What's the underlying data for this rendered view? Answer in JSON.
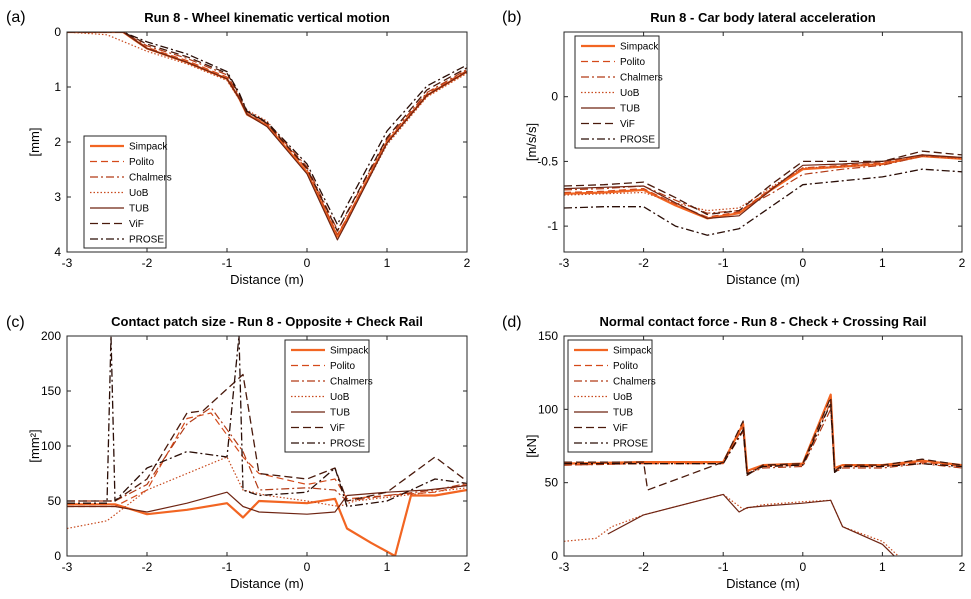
{
  "styles": {
    "Simpack": {
      "color": "#f26522",
      "dash": "",
      "width": 2.2
    },
    "Polito": {
      "color": "#d44a1a",
      "dash": "7,4",
      "width": 1.2
    },
    "Chalmers": {
      "color": "#b23b16",
      "dash": "8,3,2,3",
      "width": 1.2
    },
    "UoB": {
      "color": "#c84a1e",
      "dash": "1.5,2",
      "width": 1.2
    },
    "TUB": {
      "color": "#6e2412",
      "dash": "",
      "width": 1.2
    },
    "ViF": {
      "color": "#4a1a0c",
      "dash": "8,4",
      "width": 1.3
    },
    "PROSE": {
      "color": "#2a0d06",
      "dash": "8,3,2,3",
      "width": 1.3
    }
  },
  "chart_data": [
    {
      "panel": "(a)",
      "type": "line",
      "title": "Run 8 - Wheel kinematic vertical motion",
      "xlabel": "Distance (m)",
      "ylabel": "[mm]",
      "xlim": [
        -3,
        2
      ],
      "ylim": [
        0,
        4
      ],
      "yreversed": true,
      "xticks": [
        "-3",
        "-2",
        "-1",
        "0",
        "1",
        "2"
      ],
      "yticks": [
        "0",
        "1",
        "2",
        "3",
        "4"
      ],
      "legend": [
        "Simpack",
        "Polito",
        "Chalmers",
        "UoB",
        "TUB",
        "ViF",
        "PROSE"
      ],
      "legend_position": "bottom-left",
      "series": [
        {
          "name": "Simpack",
          "x": [
            -3,
            -2.3,
            -2.0,
            -1.5,
            -1.0,
            -0.85,
            -0.75,
            -0.5,
            0,
            0.38,
            0.5,
            1.0,
            1.5,
            2.0
          ],
          "y": [
            0,
            0,
            0.3,
            0.55,
            0.85,
            1.2,
            1.5,
            1.7,
            2.55,
            3.72,
            3.4,
            2.0,
            1.15,
            0.72
          ]
        },
        {
          "name": "Polito",
          "x": [
            -3,
            -2.3,
            -2.0,
            -1.5,
            -1.0,
            -0.85,
            -0.75,
            -0.5,
            0,
            0.38,
            0.5,
            1.0,
            1.5,
            2.0
          ],
          "y": [
            0,
            0,
            0.28,
            0.52,
            0.82,
            1.18,
            1.48,
            1.68,
            2.5,
            3.68,
            3.38,
            2.0,
            1.12,
            0.7
          ]
        },
        {
          "name": "Chalmers",
          "x": [
            -3,
            -2.3,
            -2.0,
            -1.5,
            -1.0,
            -0.85,
            -0.75,
            -0.5,
            0,
            0.38,
            0.5,
            1.0,
            1.5,
            2.0
          ],
          "y": [
            0,
            0,
            0.25,
            0.48,
            0.78,
            1.15,
            1.45,
            1.65,
            2.45,
            3.6,
            3.3,
            1.95,
            1.1,
            0.68
          ]
        },
        {
          "name": "UoB",
          "x": [
            -3,
            -2.5,
            -2.0,
            -1.5,
            -1.0,
            -0.85,
            -0.75,
            -0.5,
            0,
            0.38,
            0.5,
            1.0,
            1.5,
            2.0
          ],
          "y": [
            0,
            0.05,
            0.35,
            0.58,
            0.88,
            1.22,
            1.42,
            1.62,
            2.5,
            3.7,
            3.42,
            2.05,
            1.18,
            0.75
          ]
        },
        {
          "name": "TUB",
          "x": [
            -3,
            -2.3,
            -2.0,
            -1.5,
            -1.0,
            -0.85,
            -0.75,
            -0.5,
            0,
            0.38,
            0.5,
            1.0,
            1.5,
            2.0
          ],
          "y": [
            0,
            0,
            0.3,
            0.55,
            0.85,
            1.2,
            1.5,
            1.72,
            2.58,
            3.78,
            3.45,
            2.02,
            1.15,
            0.72
          ]
        },
        {
          "name": "ViF",
          "x": [
            -3,
            -2.3,
            -2.0,
            -1.5,
            -1.0,
            -0.85,
            -0.75,
            -0.5,
            0,
            0.38,
            0.5,
            1.0,
            1.5,
            2.0
          ],
          "y": [
            0,
            0,
            0.22,
            0.45,
            0.75,
            1.12,
            1.45,
            1.66,
            2.48,
            3.62,
            3.28,
            1.92,
            1.05,
            0.65
          ]
        },
        {
          "name": "PROSE",
          "x": [
            -3,
            -2.3,
            -2.0,
            -1.5,
            -1.0,
            -0.85,
            -0.75,
            -0.5,
            0,
            0.38,
            0.5,
            1.0,
            1.5,
            2.0
          ],
          "y": [
            0,
            0,
            0.18,
            0.4,
            0.72,
            1.1,
            1.44,
            1.64,
            2.4,
            3.5,
            3.15,
            1.8,
            0.98,
            0.6
          ]
        }
      ]
    },
    {
      "panel": "(b)",
      "type": "line",
      "title": "Run 8 - Car body lateral acceleration",
      "xlabel": "Distance (m)",
      "ylabel": "[m/s/s]",
      "xlim": [
        -3,
        2
      ],
      "ylim": [
        -1.2,
        0.5
      ],
      "yreversed": false,
      "xticks": [
        "-3",
        "-2",
        "-1",
        "0",
        "1",
        "2"
      ],
      "yticks": [
        "-1",
        "-0.5",
        "0"
      ],
      "ytickvals": [
        -1,
        -0.5,
        0
      ],
      "legend": [
        "Simpack",
        "Polito",
        "Chalmers",
        "UoB",
        "TUB",
        "ViF",
        "PROSE"
      ],
      "legend_position": "top-left",
      "series": [
        {
          "name": "Simpack",
          "x": [
            -3,
            -2.5,
            -2.0,
            -1.6,
            -1.2,
            -0.8,
            -0.4,
            0,
            0.5,
            1.0,
            1.5,
            2.0
          ],
          "y": [
            -0.75,
            -0.74,
            -0.72,
            -0.84,
            -0.94,
            -0.9,
            -0.72,
            -0.56,
            -0.54,
            -0.52,
            -0.46,
            -0.48
          ]
        },
        {
          "name": "Polito",
          "x": [
            -3,
            -2.5,
            -2.0,
            -1.6,
            -1.2,
            -0.8,
            -0.4,
            0,
            0.5,
            1.0,
            1.5,
            2.0
          ],
          "y": [
            -0.74,
            -0.73,
            -0.71,
            -0.83,
            -0.93,
            -0.89,
            -0.71,
            -0.55,
            -0.53,
            -0.51,
            -0.45,
            -0.47
          ]
        },
        {
          "name": "Chalmers",
          "x": [
            -3,
            -2.5,
            -2.0,
            -1.6,
            -1.2,
            -0.8,
            -0.4,
            0,
            0.5,
            1.0,
            1.5,
            2.0
          ],
          "y": [
            -0.72,
            -0.71,
            -0.69,
            -0.8,
            -0.9,
            -0.88,
            -0.75,
            -0.6,
            -0.56,
            -0.53,
            -0.46,
            -0.47
          ]
        },
        {
          "name": "UoB",
          "x": [
            -3,
            -2.5,
            -2.0,
            -1.6,
            -1.2,
            -0.8,
            -0.4,
            0,
            0.5,
            1.0,
            1.5,
            2.0
          ],
          "y": [
            -0.76,
            -0.75,
            -0.74,
            -0.82,
            -0.88,
            -0.86,
            -0.7,
            -0.55,
            -0.54,
            -0.52,
            -0.46,
            -0.48
          ]
        },
        {
          "name": "TUB",
          "x": [
            -3,
            -2.5,
            -2.0,
            -1.6,
            -1.2,
            -0.8,
            -0.4,
            0,
            0.5,
            1.0,
            1.5,
            2.0
          ],
          "y": [
            -0.71,
            -0.7,
            -0.69,
            -0.82,
            -0.94,
            -0.92,
            -0.72,
            -0.53,
            -0.52,
            -0.5,
            -0.45,
            -0.47
          ]
        },
        {
          "name": "ViF",
          "x": [
            -3,
            -2.5,
            -2.0,
            -1.6,
            -1.2,
            -0.8,
            -0.4,
            0,
            0.5,
            1.0,
            1.5,
            2.0
          ],
          "y": [
            -0.69,
            -0.68,
            -0.66,
            -0.78,
            -0.91,
            -0.88,
            -0.68,
            -0.5,
            -0.5,
            -0.5,
            -0.42,
            -0.45
          ]
        },
        {
          "name": "PROSE",
          "x": [
            -3,
            -2.5,
            -2.0,
            -1.6,
            -1.2,
            -0.8,
            -0.4,
            0,
            0.5,
            1.0,
            1.5,
            2.0
          ],
          "y": [
            -0.86,
            -0.85,
            -0.85,
            -1.0,
            -1.07,
            -1.02,
            -0.85,
            -0.68,
            -0.65,
            -0.62,
            -0.56,
            -0.58
          ]
        }
      ]
    },
    {
      "panel": "(c)",
      "type": "line",
      "title": "Contact patch size  - Run 8 - Opposite + Check Rail",
      "xlabel": "Distance (m)",
      "ylabel": "[mm²]",
      "xlim": [
        -3,
        2
      ],
      "ylim": [
        0,
        200
      ],
      "yreversed": false,
      "xticks": [
        "-3",
        "-2",
        "-1",
        "0",
        "1",
        "2"
      ],
      "yticks": [
        "0",
        "50",
        "100",
        "150",
        "200"
      ],
      "legend": [
        "Simpack",
        "Polito",
        "Chalmers",
        "UoB",
        "TUB",
        "ViF",
        "PROSE"
      ],
      "legend_position": "top-right",
      "series": [
        {
          "name": "Simpack",
          "x": [
            -3,
            -2.4,
            -2.0,
            -1.5,
            -1.0,
            -0.8,
            -0.6,
            0,
            0.35,
            0.5,
            0.8,
            1.1,
            1.3,
            1.6,
            2.0
          ],
          "y": [
            47,
            47,
            38,
            42,
            48,
            35,
            50,
            48,
            52,
            25,
            12,
            0,
            55,
            55,
            60
          ]
        },
        {
          "name": "Polito",
          "x": [
            -3,
            -2.4,
            -2.0,
            -1.5,
            -1.2,
            -0.8,
            -0.6,
            0,
            0.35,
            0.5,
            1.0,
            1.6,
            2.0
          ],
          "y": [
            45,
            45,
            60,
            125,
            130,
            90,
            75,
            65,
            70,
            52,
            55,
            58,
            65
          ]
        },
        {
          "name": "Chalmers",
          "x": [
            -3,
            -2.4,
            -2.0,
            -1.5,
            -1.2,
            -0.8,
            -0.6,
            0,
            0.35,
            0.5,
            1.0,
            1.6,
            2.0
          ],
          "y": [
            50,
            50,
            65,
            120,
            135,
            95,
            60,
            62,
            60,
            50,
            55,
            60,
            66
          ]
        },
        {
          "name": "UoB",
          "x": [
            -3,
            -2.5,
            -2.0,
            -1.5,
            -1.0,
            -0.8,
            -0.5,
            0,
            0.4,
            0.6,
            1.2,
            2.0
          ],
          "y": [
            25,
            32,
            60,
            75,
            90,
            60,
            55,
            50,
            45,
            50,
            55,
            62
          ]
        },
        {
          "name": "TUB",
          "x": [
            -3,
            -2.4,
            -2.0,
            -1.5,
            -1.0,
            -0.8,
            -0.6,
            0,
            0.35,
            0.5,
            1.0,
            1.5,
            2.0
          ],
          "y": [
            45,
            45,
            40,
            48,
            58,
            45,
            40,
            38,
            40,
            55,
            58,
            60,
            64
          ]
        },
        {
          "name": "ViF",
          "x": [
            -3,
            -2.4,
            -2.0,
            -1.5,
            -1.3,
            -0.8,
            -0.6,
            0,
            0.35,
            0.5,
            1.0,
            1.6,
            2.0
          ],
          "y": [
            50,
            50,
            70,
            130,
            132,
            165,
            75,
            70,
            80,
            50,
            58,
            90,
            68
          ]
        },
        {
          "name": "PROSE",
          "x": [
            -3,
            -2.5,
            -2.45,
            -2.4,
            -2.0,
            -1.5,
            -1.0,
            -0.85,
            -0.8,
            -0.6,
            0,
            0.35,
            0.5,
            1.0,
            1.6,
            2.0
          ],
          "y": [
            48,
            48,
            200,
            50,
            80,
            95,
            90,
            200,
            60,
            55,
            58,
            80,
            45,
            50,
            70,
            66
          ]
        }
      ]
    },
    {
      "panel": "(d)",
      "type": "line",
      "title": "Normal contact force  - Run 8 - Check + Crossing Rail",
      "xlabel": "Distance (m)",
      "ylabel": "[kN]",
      "xlim": [
        -3,
        2
      ],
      "ylim": [
        0,
        150
      ],
      "yreversed": false,
      "xticks": [
        "-3",
        "-2",
        "-1",
        "0",
        "1",
        "2"
      ],
      "yticks": [
        "0",
        "50",
        "100",
        "150"
      ],
      "legend": [
        "Simpack",
        "Polito",
        "Chalmers",
        "UoB",
        "TUB",
        "ViF",
        "PROSE"
      ],
      "legend_position": "top-left",
      "series": [
        {
          "name": "Simpack",
          "x": [
            -3,
            -2.0,
            -1.0,
            -0.75,
            -0.7,
            -0.5,
            0,
            0.35,
            0.4,
            0.5,
            1.0,
            1.5,
            2.0
          ],
          "y": [
            63,
            64,
            64,
            90,
            58,
            62,
            63,
            110,
            60,
            62,
            62,
            65,
            62
          ]
        },
        {
          "name": "Polito",
          "x": [
            -3,
            -2.0,
            -1.0,
            -0.75,
            -0.7,
            -0.5,
            0,
            0.35,
            0.4,
            0.5,
            1.0,
            1.5,
            2.0
          ],
          "y": [
            62,
            63,
            63,
            88,
            57,
            61,
            62,
            105,
            58,
            61,
            61,
            64,
            61
          ]
        },
        {
          "name": "Chalmers",
          "x": [
            -3,
            -2.0,
            -1.0,
            -0.75,
            -0.7,
            -0.5,
            0,
            0.35,
            0.4,
            0.5,
            1.0,
            1.5,
            2.0
          ],
          "y": [
            62,
            63,
            63,
            85,
            56,
            60,
            61,
            100,
            57,
            60,
            60,
            63,
            60
          ]
        },
        {
          "name": "UoB",
          "x": [
            -3.0,
            -2.6,
            -2.4,
            -2.0,
            -1.0,
            -0.75,
            -0.5,
            0,
            0.35,
            0.5,
            1.0,
            1.2
          ],
          "y": [
            10,
            12,
            20,
            28,
            42,
            32,
            35,
            37,
            38,
            20,
            10,
            0
          ]
        },
        {
          "name": "TUB",
          "x": [
            -2.45,
            -2.0,
            -1.0,
            -0.8,
            -0.7,
            -0.5,
            0,
            0.35,
            0.5,
            1.0,
            1.15
          ],
          "y": [
            15,
            28,
            42,
            30,
            33,
            34,
            36,
            38,
            20,
            8,
            0
          ]
        },
        {
          "name": "ViF",
          "x": [
            -3,
            -2.0,
            -1.95,
            -1.0,
            -0.75,
            -0.7,
            -0.5,
            0,
            0.35,
            0.4,
            0.5,
            1.0,
            1.5,
            2.0
          ],
          "y": [
            64,
            64,
            45,
            64,
            92,
            55,
            62,
            63,
            108,
            58,
            62,
            62,
            66,
            62
          ]
        },
        {
          "name": "PROSE",
          "x": [
            -3,
            -2.0,
            -1.0,
            -0.75,
            -0.7,
            -0.5,
            0,
            0.35,
            0.4,
            0.5,
            1.0,
            1.5,
            2.0
          ],
          "y": [
            63,
            63,
            63,
            86,
            56,
            61,
            62,
            104,
            57,
            61,
            61,
            63,
            61
          ]
        }
      ]
    }
  ]
}
